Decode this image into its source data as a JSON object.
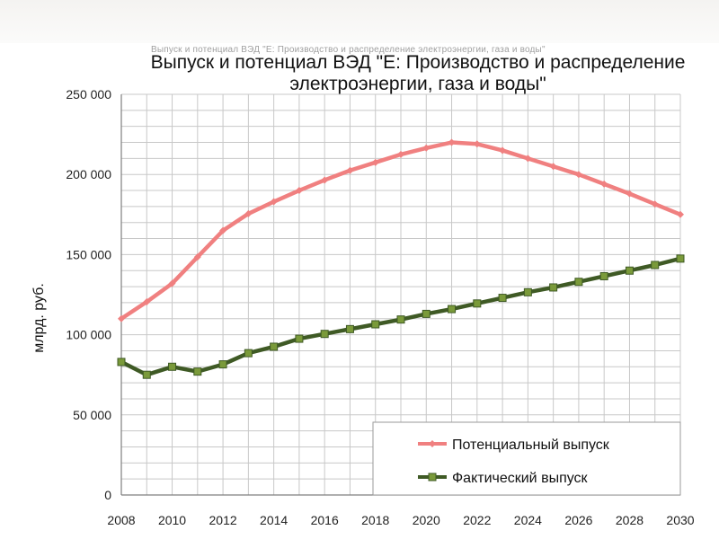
{
  "chart_data": {
    "type": "line",
    "title": "Выпуск и потенциал ВЭД \"Е: Производство и распределение электроэнергии, газа и воды\"",
    "faded_title": "Выпуск и потенциал ВЭД \"Е: Производство и распределение электроэнергии, газа и воды\"",
    "xlabel": "",
    "ylabel": "млрд. руб.",
    "x": [
      2008,
      2009,
      2010,
      2011,
      2012,
      2013,
      2014,
      2015,
      2016,
      2017,
      2018,
      2019,
      2020,
      2021,
      2022,
      2023,
      2024,
      2025,
      2026,
      2027,
      2028,
      2029,
      2030
    ],
    "x_tick_labels": [
      "2008",
      "2010",
      "2012",
      "2014",
      "2016",
      "2018",
      "2020",
      "2022",
      "2024",
      "2026",
      "2028",
      "2030"
    ],
    "y_tick_labels": [
      "0",
      "50 000",
      "100 000",
      "150 000",
      "200 000",
      "250 000"
    ],
    "ylim": [
      0,
      250000
    ],
    "grid": true,
    "legend_position": "bottom-right",
    "series": [
      {
        "name": "Потенциальный выпуск",
        "color": "#f08080",
        "marker": "diamond",
        "values": [
          110000,
          120500,
          132000,
          148500,
          165000,
          175500,
          183000,
          190000,
          196500,
          202500,
          207500,
          212500,
          216500,
          220000,
          219000,
          215000,
          210000,
          205000,
          200000,
          194000,
          188000,
          181500,
          175000
        ]
      },
      {
        "name": "Фактический выпуск",
        "color": "#3f5a25",
        "marker_color": "#7a9a3a",
        "marker": "square",
        "values": [
          83000,
          75000,
          80000,
          77000,
          81500,
          88500,
          92500,
          97500,
          100500,
          103500,
          106500,
          109500,
          113000,
          116000,
          119500,
          123000,
          126500,
          129500,
          133000,
          136500,
          140000,
          143500,
          147500
        ]
      }
    ]
  }
}
